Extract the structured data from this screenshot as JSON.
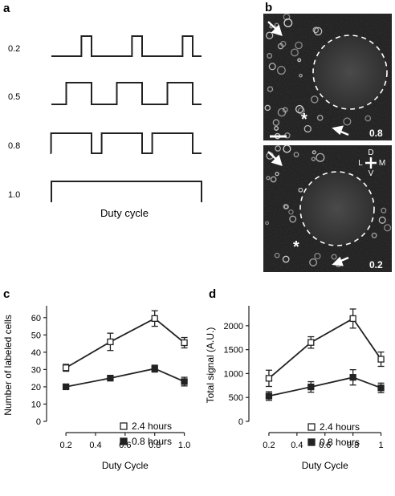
{
  "panels": {
    "a": {
      "letter": "a",
      "rows": [
        {
          "label": "0.2",
          "duty": 0.2
        },
        {
          "label": "0.5",
          "duty": 0.5
        },
        {
          "label": "0.8",
          "duty": 0.8
        },
        {
          "label": "1.0",
          "duty": 1.0
        }
      ],
      "caption": "Duty cycle"
    },
    "b": {
      "letter": "b",
      "top_value": "0.8",
      "bottom_value": "0.2",
      "orient": {
        "d": "D",
        "l": "L",
        "m": "M",
        "v": "V"
      },
      "asterisk": "*"
    },
    "c": {
      "letter": "c"
    },
    "d": {
      "letter": "d"
    }
  },
  "chart_data": [
    {
      "type": "line",
      "xlabel": "Duty Cycle",
      "ylabel": "Number of labeled cells",
      "x": [
        0.2,
        0.5,
        0.8,
        1.0
      ],
      "xticks": [
        "0.2",
        "0.4",
        "0.6",
        "0.8",
        "1.0"
      ],
      "xtick_values": [
        0.2,
        0.4,
        0.6,
        0.8,
        1.0
      ],
      "yticks": [
        "0",
        "10",
        "20",
        "30",
        "40",
        "50",
        "60"
      ],
      "ytick_values": [
        0,
        10,
        20,
        30,
        40,
        50,
        60
      ],
      "xlim": [
        0.08,
        1.1
      ],
      "ylim": [
        0,
        65
      ],
      "series": [
        {
          "name": "2.4 hours",
          "marker": "open-square",
          "values": [
            31,
            46,
            59.5,
            45.5
          ],
          "errors": [
            2,
            5,
            4.5,
            3
          ]
        },
        {
          "name": "0.8 hours",
          "marker": "filled-square",
          "values": [
            20,
            25,
            30.5,
            23
          ],
          "errors": [
            1,
            1.5,
            2,
            2.5
          ]
        }
      ],
      "legend": "bottom-right"
    },
    {
      "type": "line",
      "xlabel": "Duty Cycle",
      "ylabel": "Total signal (A.U.)",
      "x": [
        0.2,
        0.5,
        0.8,
        1.0
      ],
      "xticks": [
        "0.2",
        "0.4",
        "0.6",
        "0.8",
        "1"
      ],
      "xtick_values": [
        0.2,
        0.4,
        0.6,
        0.8,
        1.0
      ],
      "yticks": [
        "0",
        "500",
        "1000",
        "1500",
        "2000"
      ],
      "ytick_values": [
        0,
        500,
        1000,
        1500,
        2000
      ],
      "xlim": [
        0.08,
        1.1
      ],
      "ylim": [
        0,
        2350
      ],
      "series": [
        {
          "name": "2.4 hours",
          "marker": "open-square",
          "values": [
            900,
            1650,
            2150,
            1300
          ],
          "errors": [
            170,
            120,
            200,
            150
          ]
        },
        {
          "name": "0.8 hours",
          "marker": "filled-square",
          "values": [
            530,
            720,
            920,
            700
          ],
          "errors": [
            90,
            110,
            160,
            100
          ]
        }
      ],
      "legend": "bottom-right"
    }
  ]
}
